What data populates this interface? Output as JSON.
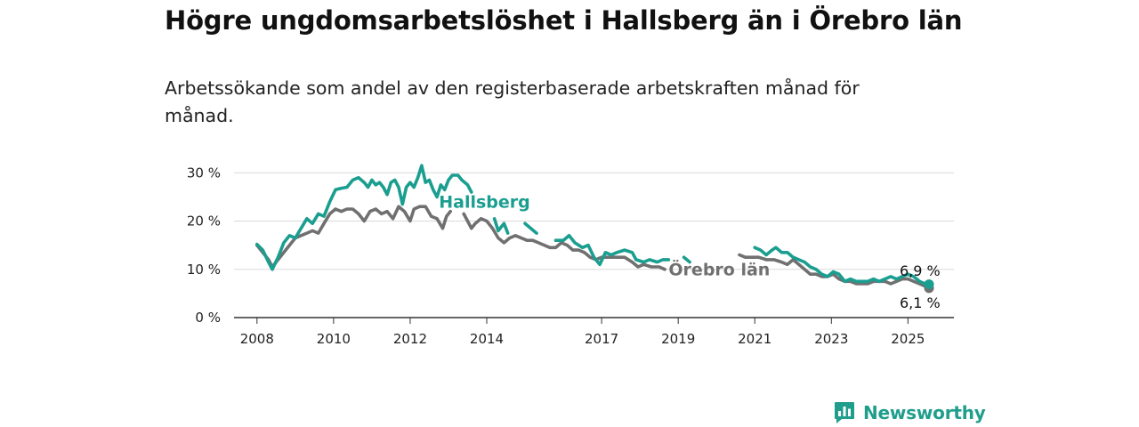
{
  "header": {
    "title": "Högre ungdomsarbetslöshet i Hallsberg än i Örebro län",
    "subtitle": "Arbetssökande som andel av den registerbaserade arbetskraften månad för månad."
  },
  "brand": {
    "name": "Newsworthy",
    "color": "#1f9e8c"
  },
  "chart_data": {
    "type": "line",
    "title": "Högre ungdomsarbetslöshet i Hallsberg än i Örebro län",
    "subtitle": "Arbetssökande som andel av den registerbaserade arbetskraften månad för månad.",
    "xlabel": "",
    "ylabel": "",
    "x_ticks": [
      2008,
      2010,
      2012,
      2014,
      2017,
      2019,
      2021,
      2023,
      2025
    ],
    "x_tick_labels": [
      "2008",
      "2010",
      "2012",
      "2014",
      "2017",
      "2019",
      "2021",
      "2023",
      "2025"
    ],
    "y_ticks": [
      0,
      10,
      20,
      30
    ],
    "y_tick_labels": [
      "0 %",
      "10 %",
      "20 %",
      "30 %"
    ],
    "xlim": [
      2007.4,
      2026.2
    ],
    "ylim": [
      0,
      33
    ],
    "grid": true,
    "legend": "inline labels",
    "series": [
      {
        "name": "Hallsberg",
        "color": "#1a9e8f",
        "end_label": "6,9 %",
        "points": [
          [
            2008.0,
            15.2
          ],
          [
            2008.15,
            14.0
          ],
          [
            2008.3,
            11.5
          ],
          [
            2008.4,
            10.0
          ],
          [
            2008.55,
            12.5
          ],
          [
            2008.7,
            15.5
          ],
          [
            2008.85,
            17.0
          ],
          [
            2009.0,
            16.5
          ],
          [
            2009.15,
            18.5
          ],
          [
            2009.3,
            20.5
          ],
          [
            2009.45,
            19.5
          ],
          [
            2009.6,
            21.5
          ],
          [
            2009.75,
            21.0
          ],
          [
            2009.9,
            24.0
          ],
          [
            2010.05,
            26.5
          ],
          [
            2010.2,
            26.8
          ],
          [
            2010.35,
            27.0
          ],
          [
            2010.5,
            28.5
          ],
          [
            2010.65,
            29.0
          ],
          [
            2010.8,
            28.0
          ],
          [
            2010.9,
            27.0
          ],
          [
            2011.0,
            28.5
          ],
          [
            2011.1,
            27.5
          ],
          [
            2011.2,
            28.0
          ],
          [
            2011.3,
            27.0
          ],
          [
            2011.4,
            25.5
          ],
          [
            2011.5,
            28.0
          ],
          [
            2011.6,
            28.5
          ],
          [
            2011.7,
            27.0
          ],
          [
            2011.8,
            23.5
          ],
          [
            2011.9,
            27.0
          ],
          [
            2012.0,
            28.0
          ],
          [
            2012.1,
            27.0
          ],
          [
            2012.2,
            29.0
          ],
          [
            2012.3,
            31.5
          ],
          [
            2012.4,
            28.0
          ],
          [
            2012.5,
            28.5
          ],
          [
            2012.6,
            26.5
          ],
          [
            2012.7,
            25.0
          ],
          [
            2012.8,
            27.5
          ],
          [
            2012.9,
            26.5
          ],
          [
            2013.0,
            28.5
          ],
          [
            2013.1,
            29.5
          ],
          [
            2013.25,
            29.5
          ],
          [
            2013.35,
            28.5
          ],
          [
            2013.5,
            27.5
          ],
          [
            2013.6,
            26.0
          ],
          null,
          [
            2014.2,
            20.5
          ],
          [
            2014.3,
            18.0
          ],
          [
            2014.45,
            19.5
          ],
          [
            2014.55,
            17.5
          ],
          null,
          [
            2015.0,
            19.5
          ],
          [
            2015.15,
            18.5
          ],
          [
            2015.3,
            17.5
          ],
          null,
          [
            2015.8,
            16.0
          ],
          [
            2016.0,
            16.0
          ],
          [
            2016.15,
            17.0
          ],
          [
            2016.3,
            15.5
          ],
          [
            2016.5,
            14.5
          ],
          [
            2016.65,
            15.0
          ],
          [
            2016.8,
            12.5
          ],
          [
            2016.95,
            11.0
          ],
          [
            2017.1,
            13.5
          ],
          [
            2017.25,
            13.0
          ],
          [
            2017.4,
            13.5
          ],
          [
            2017.6,
            14.0
          ],
          [
            2017.8,
            13.5
          ],
          [
            2017.9,
            12.0
          ],
          [
            2018.1,
            11.5
          ],
          [
            2018.25,
            12.0
          ],
          [
            2018.45,
            11.5
          ],
          [
            2018.6,
            12.0
          ],
          [
            2018.75,
            12.0
          ],
          null,
          [
            2019.15,
            12.5
          ],
          [
            2019.3,
            11.5
          ],
          null,
          [
            2021.0,
            14.5
          ],
          [
            2021.15,
            14.0
          ],
          [
            2021.3,
            13.0
          ],
          [
            2021.45,
            14.0
          ],
          [
            2021.55,
            14.5
          ],
          [
            2021.7,
            13.5
          ],
          [
            2021.85,
            13.5
          ],
          [
            2022.0,
            12.5
          ],
          [
            2022.15,
            12.0
          ],
          [
            2022.3,
            11.5
          ],
          [
            2022.45,
            10.5
          ],
          [
            2022.6,
            10.0
          ],
          [
            2022.75,
            9.0
          ],
          [
            2022.9,
            8.5
          ],
          [
            2023.05,
            9.5
          ],
          [
            2023.2,
            9.0
          ],
          [
            2023.35,
            7.5
          ],
          [
            2023.5,
            8.0
          ],
          [
            2023.65,
            7.5
          ],
          [
            2023.8,
            7.5
          ],
          [
            2023.95,
            7.5
          ],
          [
            2024.1,
            8.0
          ],
          [
            2024.25,
            7.5
          ],
          [
            2024.4,
            8.0
          ],
          [
            2024.55,
            8.5
          ],
          [
            2024.7,
            8.0
          ],
          [
            2024.85,
            8.5
          ],
          [
            2025.0,
            9.0
          ],
          [
            2025.15,
            8.5
          ],
          [
            2025.3,
            7.5
          ],
          [
            2025.45,
            7.0
          ],
          [
            2025.55,
            6.9
          ]
        ]
      },
      {
        "name": "Örebro län",
        "color": "#707070",
        "end_label": "6,1 %",
        "points": [
          [
            2008.0,
            15.0
          ],
          [
            2008.15,
            13.5
          ],
          [
            2008.3,
            12.0
          ],
          [
            2008.4,
            10.5
          ],
          [
            2008.55,
            12.0
          ],
          [
            2008.7,
            13.5
          ],
          [
            2008.85,
            15.0
          ],
          [
            2009.0,
            16.5
          ],
          [
            2009.15,
            17.0
          ],
          [
            2009.3,
            17.5
          ],
          [
            2009.45,
            18.0
          ],
          [
            2009.6,
            17.5
          ],
          [
            2009.75,
            19.5
          ],
          [
            2009.9,
            21.5
          ],
          [
            2010.05,
            22.5
          ],
          [
            2010.2,
            22.0
          ],
          [
            2010.35,
            22.5
          ],
          [
            2010.5,
            22.5
          ],
          [
            2010.65,
            21.5
          ],
          [
            2010.8,
            20.0
          ],
          [
            2010.95,
            22.0
          ],
          [
            2011.1,
            22.5
          ],
          [
            2011.25,
            21.5
          ],
          [
            2011.4,
            22.0
          ],
          [
            2011.55,
            20.5
          ],
          [
            2011.7,
            23.0
          ],
          [
            2011.85,
            22.0
          ],
          [
            2012.0,
            20.0
          ],
          [
            2012.1,
            22.5
          ],
          [
            2012.25,
            23.0
          ],
          [
            2012.4,
            23.0
          ],
          [
            2012.55,
            21.0
          ],
          [
            2012.7,
            20.5
          ],
          [
            2012.85,
            18.5
          ],
          [
            2012.95,
            21.0
          ],
          [
            2013.05,
            22.0
          ],
          null,
          [
            2013.4,
            21.5
          ],
          [
            2013.5,
            20.0
          ],
          [
            2013.6,
            18.5
          ],
          [
            2013.7,
            19.5
          ],
          [
            2013.85,
            20.5
          ],
          [
            2014.0,
            20.0
          ],
          [
            2014.15,
            18.5
          ],
          [
            2014.3,
            16.5
          ],
          [
            2014.45,
            15.5
          ],
          [
            2014.6,
            16.5
          ],
          [
            2014.75,
            17.0
          ],
          [
            2014.9,
            16.5
          ],
          [
            2015.05,
            16.0
          ],
          [
            2015.2,
            16.0
          ],
          [
            2015.35,
            15.5
          ],
          [
            2015.5,
            15.0
          ],
          [
            2015.65,
            14.5
          ],
          [
            2015.8,
            14.5
          ],
          [
            2015.95,
            15.5
          ],
          [
            2016.1,
            15.0
          ],
          [
            2016.25,
            14.0
          ],
          [
            2016.4,
            14.0
          ],
          [
            2016.55,
            13.5
          ],
          [
            2016.7,
            12.5
          ],
          [
            2016.85,
            12.0
          ],
          [
            2017.0,
            12.5
          ],
          [
            2017.15,
            12.5
          ],
          [
            2017.3,
            12.5
          ],
          [
            2017.45,
            12.5
          ],
          [
            2017.6,
            12.5
          ],
          [
            2017.8,
            11.5
          ],
          [
            2017.95,
            10.5
          ],
          [
            2018.1,
            11.0
          ],
          [
            2018.3,
            10.5
          ],
          [
            2018.5,
            10.5
          ],
          [
            2018.65,
            10.0
          ],
          null,
          [
            2020.6,
            13.0
          ],
          [
            2020.75,
            12.5
          ],
          [
            2020.9,
            12.5
          ],
          [
            2021.1,
            12.5
          ],
          [
            2021.3,
            12.0
          ],
          [
            2021.5,
            12.0
          ],
          [
            2021.7,
            11.5
          ],
          [
            2021.85,
            11.0
          ],
          [
            2022.0,
            12.0
          ],
          [
            2022.15,
            11.0
          ],
          [
            2022.3,
            10.0
          ],
          [
            2022.45,
            9.0
          ],
          [
            2022.6,
            9.0
          ],
          [
            2022.75,
            8.5
          ],
          [
            2022.9,
            8.5
          ],
          [
            2023.05,
            9.0
          ],
          [
            2023.2,
            8.0
          ],
          [
            2023.35,
            7.5
          ],
          [
            2023.5,
            7.5
          ],
          [
            2023.65,
            7.0
          ],
          [
            2023.8,
            7.0
          ],
          [
            2023.95,
            7.0
          ],
          [
            2024.1,
            7.5
          ],
          [
            2024.25,
            7.5
          ],
          [
            2024.4,
            7.5
          ],
          [
            2024.55,
            7.0
          ],
          [
            2024.7,
            7.5
          ],
          [
            2024.85,
            8.0
          ],
          [
            2025.0,
            8.0
          ],
          [
            2025.15,
            7.5
          ],
          [
            2025.3,
            7.0
          ],
          [
            2025.45,
            6.5
          ],
          [
            2025.55,
            6.1
          ]
        ]
      }
    ]
  }
}
